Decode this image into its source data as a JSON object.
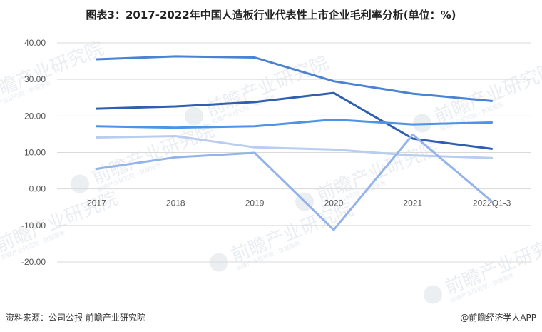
{
  "chart_data": {
    "type": "line",
    "title": "图表3：2017-2022年中国人造板行业代表性上市企业毛利率分析(单位：%)",
    "categories": [
      "2017",
      "2018",
      "2019",
      "2020",
      "2021",
      "2022Q1-3"
    ],
    "y_ticks": [
      "40.00",
      "30.00",
      "20.00",
      "10.00",
      "0.00",
      "-10.00",
      "-20.00"
    ],
    "ylim": [
      -20,
      40
    ],
    "grid": true,
    "series": [
      {
        "values": [
          35.5,
          36.3,
          36.0,
          29.5,
          26.1,
          24.1
        ],
        "color": "#4a82d4"
      },
      {
        "values": [
          22.0,
          22.6,
          23.8,
          26.3,
          13.8,
          11.0
        ],
        "color": "#2f5fae"
      },
      {
        "values": [
          17.2,
          16.8,
          17.2,
          19.0,
          17.7,
          18.2
        ],
        "color": "#4e94e6"
      },
      {
        "values": [
          14.1,
          14.5,
          11.4,
          10.8,
          9.2,
          8.5
        ],
        "color": "#b8cdef"
      },
      {
        "values": [
          5.5,
          8.7,
          9.9,
          -11.2,
          14.9,
          -3.4
        ],
        "color": "#93b3ea"
      }
    ]
  },
  "watermark": {
    "text": "前瞻产业研究院",
    "subtext": "前瞻产业研究院 · 数据服务"
  },
  "footer": {
    "source": "资料来源：公司公报 前瞻产业研究院",
    "brand": "@前瞻经济学人APP"
  }
}
